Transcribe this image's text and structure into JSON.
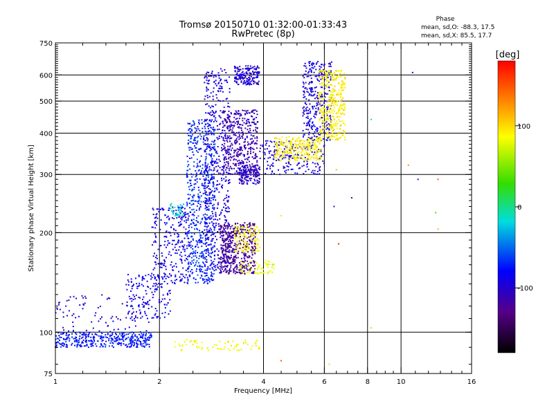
{
  "chart_data": {
    "type": "scatter",
    "title": "Tromsø 20150710 01:32:00-01:33:43",
    "subtitle": "RwPretec (8p)",
    "xlabel": "Frequency [MHz]",
    "ylabel": "Stationary phase Virtual Height [km]",
    "xscale": "log",
    "yscale": "log",
    "xlim": [
      1,
      16
    ],
    "ylim": [
      75,
      750
    ],
    "x_ticks": [
      1,
      2,
      4,
      6,
      8,
      10,
      16
    ],
    "x_tick_labels": [
      "1",
      "2",
      "4",
      "6",
      "8",
      "10",
      "16"
    ],
    "y_ticks": [
      75,
      100,
      200,
      300,
      400,
      500,
      600,
      750
    ],
    "y_tick_labels": [
      "75",
      "100",
      "200",
      "300",
      "400",
      "500",
      "600",
      "750"
    ],
    "grid": true,
    "grid_x": [
      2,
      4,
      6,
      8,
      10
    ],
    "grid_y": [
      100,
      200,
      300,
      400,
      500,
      600
    ],
    "phase_box": {
      "title": "Phase",
      "line_o": "mean, sd,O: -88.3, 17.5",
      "line_x": "mean, sd,X: 85.5, 17.7"
    },
    "colorbar": {
      "label": "[deg]",
      "range": [
        -180,
        180
      ],
      "ticks": [
        100,
        0,
        -100
      ],
      "tick_labels": [
        "100",
        "0",
        "-100"
      ],
      "colormap": "rainbow"
    },
    "point_clusters": [
      {
        "x": [
          1.0,
          1.9
        ],
        "y": [
          90,
          100
        ],
        "phase": -95,
        "n": 360
      },
      {
        "x": [
          1.0,
          1.9
        ],
        "y": [
          100,
          130
        ],
        "phase": -115,
        "n": 90
      },
      {
        "x": [
          1.6,
          2.15
        ],
        "y": [
          110,
          150
        ],
        "phase": -105,
        "n": 150
      },
      {
        "x": [
          1.9,
          2.45
        ],
        "y": [
          140,
          240
        ],
        "phase": -108,
        "n": 260
      },
      {
        "x": [
          2.4,
          2.9
        ],
        "y": [
          140,
          440
        ],
        "phase": -90,
        "n": 620
      },
      {
        "x": [
          2.7,
          3.2
        ],
        "y": [
          150,
          630
        ],
        "phase": -112,
        "n": 500
      },
      {
        "x": [
          3.0,
          3.8
        ],
        "y": [
          150,
          215
        ],
        "phase": -135,
        "n": 450
      },
      {
        "x": [
          3.05,
          3.85
        ],
        "y": [
          300,
          470
        ],
        "phase": -125,
        "n": 420
      },
      {
        "x": [
          3.4,
          3.9
        ],
        "y": [
          280,
          320
        ],
        "phase": -120,
        "n": 140
      },
      {
        "x": [
          3.3,
          3.9
        ],
        "y": [
          560,
          640
        ],
        "phase": -115,
        "n": 170
      },
      {
        "x": [
          3.9,
          6.0
        ],
        "y": [
          300,
          380
        ],
        "phase": -110,
        "n": 200
      },
      {
        "x": [
          5.2,
          6.3
        ],
        "y": [
          380,
          660
        ],
        "phase": -110,
        "n": 320
      },
      {
        "x": [
          4.3,
          5.9
        ],
        "y": [
          330,
          390
        ],
        "phase": 95,
        "n": 260
      },
      {
        "x": [
          5.8,
          6.9
        ],
        "y": [
          380,
          620
        ],
        "phase": 95,
        "n": 360
      },
      {
        "x": [
          3.3,
          3.9
        ],
        "y": [
          175,
          210
        ],
        "phase": 90,
        "n": 120
      },
      {
        "x": [
          3.4,
          4.3
        ],
        "y": [
          150,
          165
        ],
        "phase": 80,
        "n": 60
      },
      {
        "x": [
          2.2,
          3.9
        ],
        "y": [
          88,
          95
        ],
        "phase": 90,
        "n": 70
      },
      {
        "x": [
          2.15,
          2.35
        ],
        "y": [
          225,
          245
        ],
        "phase": -40,
        "n": 35
      }
    ],
    "scattered_points": [
      {
        "x": 8.2,
        "y": 440,
        "phase": -20
      },
      {
        "x": 10.8,
        "y": 610,
        "phase": -110
      },
      {
        "x": 10.5,
        "y": 320,
        "phase": 130
      },
      {
        "x": 11.2,
        "y": 290,
        "phase": -90
      },
      {
        "x": 12.8,
        "y": 290,
        "phase": 150
      },
      {
        "x": 12.6,
        "y": 230,
        "phase": 10
      },
      {
        "x": 12.8,
        "y": 205,
        "phase": 120
      },
      {
        "x": 6.4,
        "y": 240,
        "phase": -130
      },
      {
        "x": 7.2,
        "y": 255,
        "phase": -130
      },
      {
        "x": 6.6,
        "y": 185,
        "phase": 170
      },
      {
        "x": 4.5,
        "y": 225,
        "phase": 70
      },
      {
        "x": 8.2,
        "y": 103,
        "phase": 110
      },
      {
        "x": 4.5,
        "y": 82,
        "phase": 150
      },
      {
        "x": 6.2,
        "y": 80,
        "phase": 100
      },
      {
        "x": 6.5,
        "y": 310,
        "phase": 40
      }
    ]
  }
}
